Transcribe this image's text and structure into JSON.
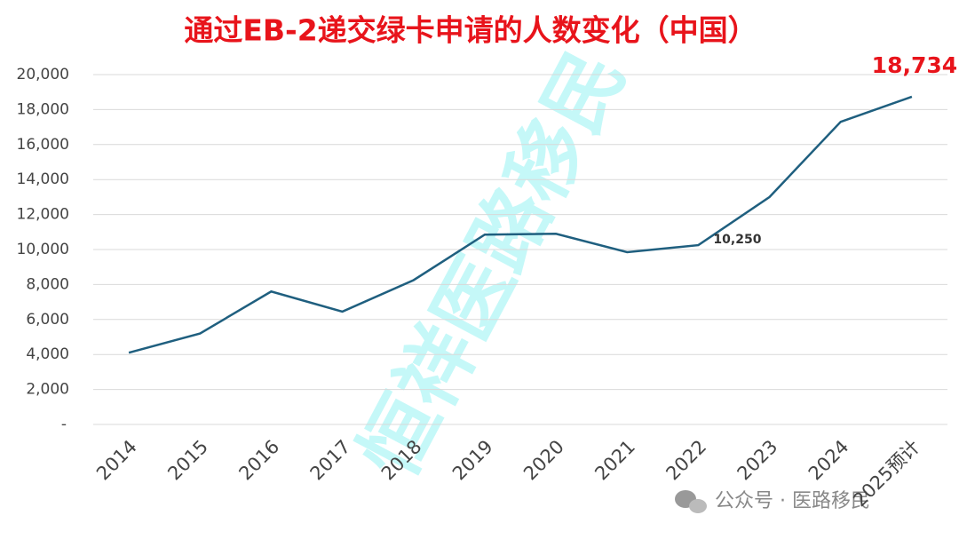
{
  "chart_data": {
    "type": "line",
    "title": "通过EB-2递交绿卡申请的人数变化（中国）",
    "categories": [
      "2014",
      "2015",
      "2016",
      "2017",
      "2018",
      "2019",
      "2020",
      "2021",
      "2022",
      "2023",
      "2024",
      "2025预计"
    ],
    "series": [
      {
        "color": "#1f5f7f",
        "values": [
          4100,
          5200,
          7600,
          6450,
          8250,
          10850,
          10900,
          9850,
          10250,
          13000,
          17300,
          18734
        ],
        "value_labels": [
          null,
          null,
          null,
          null,
          null,
          null,
          null,
          null,
          "10,250",
          null,
          null,
          "18,734"
        ]
      }
    ],
    "ylim": [
      0,
      20000
    ],
    "yticks": [
      {
        "value": 0,
        "label": "-"
      },
      {
        "value": 2000,
        "label": "2,000"
      },
      {
        "value": 4000,
        "label": "4,000"
      },
      {
        "value": 6000,
        "label": "6,000"
      },
      {
        "value": 8000,
        "label": "8,000"
      },
      {
        "value": 10000,
        "label": "10,000"
      },
      {
        "value": 12000,
        "label": "12,000"
      },
      {
        "value": 14000,
        "label": "14,000"
      },
      {
        "value": 16000,
        "label": "16,000"
      },
      {
        "value": 18000,
        "label": "18,000"
      },
      {
        "value": 20000,
        "label": "20,000"
      }
    ],
    "grid": true,
    "watermark": "恒祥医路移民",
    "footer": "公众号 · 医路移民"
  }
}
